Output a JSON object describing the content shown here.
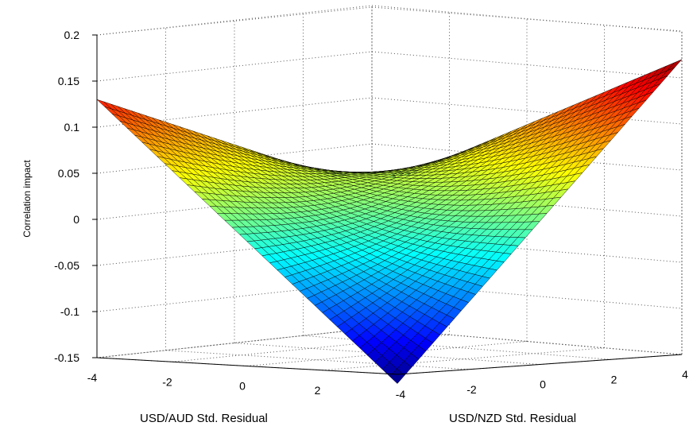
{
  "chart_data": {
    "type": "surface",
    "title": "",
    "xlabel": "USD/AUD Std. Residual",
    "ylabel": "USD/NZD Std. Residual",
    "zlabel": "Correlation impact",
    "xlim": [
      -4,
      4
    ],
    "ylim": [
      -4,
      4
    ],
    "zlim": [
      -0.15,
      0.2
    ],
    "x_ticks": [
      "-4",
      "-2",
      "0",
      "2"
    ],
    "y_ticks": [
      "-4",
      "-2",
      "0",
      "2",
      "4"
    ],
    "z_ticks": [
      "0.2",
      "0.15",
      "0.1",
      "0.05",
      "0",
      "-0.05",
      "-0.1",
      "-0.15"
    ],
    "grid": true,
    "colormap": "jet",
    "surface": {
      "function": "correlation impact as a function of the two standardized residuals",
      "corner_values": [
        {
          "x": 4,
          "y": -4,
          "z": -0.16
        },
        {
          "x": -4,
          "y": -4,
          "z": 0.13
        },
        {
          "x": 4,
          "y": 4,
          "z": 0.17
        },
        {
          "x": -4,
          "y": 4,
          "z": 0.0
        }
      ]
    },
    "colors": {
      "low": "#00008f",
      "mid": "#00ffff",
      "high": "#ffff00",
      "top": "#800000"
    }
  }
}
